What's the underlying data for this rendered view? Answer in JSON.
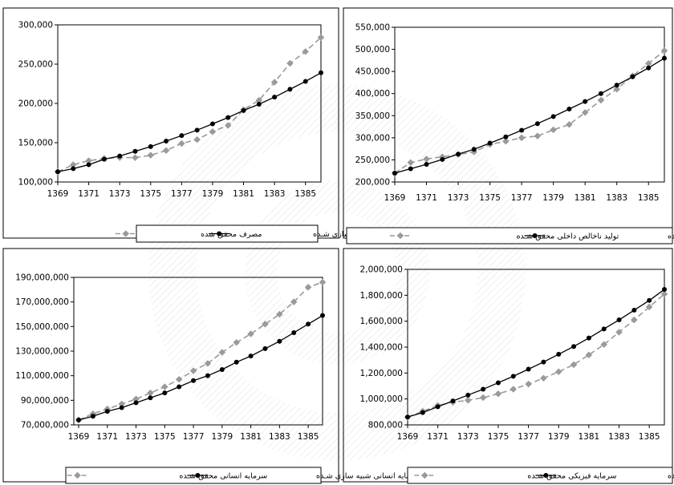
{
  "colors": {
    "actual": "#9a9a9a",
    "simulated": "#000000",
    "frame": "#000000",
    "watermark": "#d9d9d9"
  },
  "chart_data": [
    {
      "type": "line",
      "x": [
        1369,
        1370,
        1371,
        1372,
        1373,
        1374,
        1375,
        1376,
        1377,
        1378,
        1379,
        1380,
        1381,
        1382,
        1383,
        1384,
        1385,
        1386
      ],
      "xticks": [
        "1369",
        "1371",
        "1373",
        "1375",
        "1377",
        "1379",
        "1381",
        "1383",
        "1385"
      ],
      "ylim": [
        100000,
        300000
      ],
      "yticks": [
        "100,000",
        "150,000",
        "200,000",
        "250,000",
        "300,000"
      ],
      "yticks_values": [
        100000,
        150000,
        200000,
        250000,
        300000
      ],
      "series": [
        {
          "name": "مصرف محقق شده",
          "style": "dashed-gray-diamond",
          "values": [
            113000,
            122000,
            127000,
            130000,
            131000,
            131000,
            134000,
            140000,
            149000,
            154000,
            164000,
            172000,
            192000,
            204000,
            227000,
            251000,
            266000,
            284000
          ]
        },
        {
          "name": "مصرف شبیه سازی شـده",
          "style": "solid-black-circle",
          "values": [
            113000,
            117000,
            122000,
            129000,
            133000,
            139000,
            145000,
            152000,
            159000,
            166000,
            174000,
            182000,
            191000,
            199000,
            208000,
            218000,
            228000,
            239000
          ]
        }
      ]
    },
    {
      "type": "line",
      "x": [
        1369,
        1370,
        1371,
        1372,
        1373,
        1374,
        1375,
        1376,
        1377,
        1378,
        1379,
        1380,
        1381,
        1382,
        1383,
        1384,
        1385,
        1386
      ],
      "xticks": [
        "1369",
        "1371",
        "1373",
        "1375",
        "1377",
        "1379",
        "1381",
        "1383",
        "1385"
      ],
      "ylim": [
        200000,
        550000
      ],
      "yticks": [
        "200,000",
        "250,000",
        "300,000",
        "350,000",
        "400,000",
        "450,000",
        "500,000",
        "550,000"
      ],
      "yticks_values": [
        200000,
        250000,
        300000,
        350000,
        400000,
        450000,
        500000,
        550000
      ],
      "series": [
        {
          "name": "تولید ناخالص داخلی محقق شـده",
          "style": "dashed-gray-diamond",
          "values": [
            220000,
            244000,
            252000,
            257000,
            262000,
            268000,
            285000,
            292000,
            300000,
            304000,
            318000,
            330000,
            357000,
            385000,
            410000,
            440000,
            468000,
            497000
          ]
        },
        {
          "name": "تولید ناخالص داخلی شبیه سازی شـده",
          "style": "solid-black-circle",
          "values": [
            220000,
            230000,
            240000,
            251000,
            263000,
            274000,
            288000,
            302000,
            317000,
            332000,
            348000,
            365000,
            382000,
            400000,
            419000,
            438000,
            458000,
            480000
          ]
        }
      ]
    },
    {
      "type": "line",
      "x": [
        1369,
        1370,
        1371,
        1372,
        1373,
        1374,
        1375,
        1376,
        1377,
        1378,
        1379,
        1380,
        1381,
        1382,
        1383,
        1384,
        1385,
        1386
      ],
      "xticks": [
        "1369",
        "1371",
        "1373",
        "1375",
        "1377",
        "1379",
        "1381",
        "1383",
        "1385"
      ],
      "ylim": [
        70000000,
        190000000
      ],
      "yticks": [
        "70,000,000",
        "90,000,000",
        "110,000,000",
        "130,000,000",
        "150,000,000",
        "170,000,000",
        "190,000,000"
      ],
      "yticks_values": [
        70000000,
        90000000,
        110000000,
        130000000,
        150000000,
        170000000,
        190000000
      ],
      "series": [
        {
          "name": "سرمایه انسانی محقق شـده",
          "style": "dashed-gray-diamond",
          "values": [
            74000000,
            79000000,
            83000000,
            87000000,
            91000000,
            96000000,
            101000000,
            107000000,
            114000000,
            120000000,
            129000000,
            137000000,
            144000000,
            152000000,
            160000000,
            170000000,
            182000000,
            186000000
          ]
        },
        {
          "name": "سرمایه انسانی شبیه سازی شـده",
          "style": "solid-black-circle",
          "values": [
            74000000,
            77000000,
            81000000,
            84000000,
            88000000,
            92000000,
            96000000,
            101000000,
            106000000,
            110000000,
            115000000,
            121000000,
            126000000,
            132000000,
            138000000,
            145000000,
            152000000,
            159000000
          ]
        }
      ]
    },
    {
      "type": "line",
      "x": [
        1369,
        1370,
        1371,
        1372,
        1373,
        1374,
        1375,
        1376,
        1377,
        1378,
        1379,
        1380,
        1381,
        1382,
        1383,
        1384,
        1385,
        1386
      ],
      "xticks": [
        "1369",
        "1371",
        "1373",
        "1375",
        "1377",
        "1379",
        "1381",
        "1383",
        "1385"
      ],
      "ylim": [
        800000,
        2000000
      ],
      "yticks": [
        "800,000",
        "1,000,000",
        "1,200,000",
        "1,400,000",
        "1,600,000",
        "1,800,000",
        "2,000,000"
      ],
      "yticks_values": [
        800000,
        1000000,
        1200000,
        1400000,
        1600000,
        1800000,
        2000000
      ],
      "series": [
        {
          "name": "سرمایه فیزیکی محقق شـده",
          "style": "dashed-gray-diamond",
          "values": [
            860000,
            905000,
            950000,
            975000,
            990000,
            1010000,
            1040000,
            1075000,
            1115000,
            1160000,
            1210000,
            1265000,
            1340000,
            1420000,
            1515000,
            1610000,
            1710000,
            1810000
          ]
        },
        {
          "name": "سرمایه فیزیکی شبیه سـازی شـده",
          "style": "solid-black-circle",
          "values": [
            860000,
            895000,
            940000,
            985000,
            1030000,
            1075000,
            1125000,
            1175000,
            1230000,
            1285000,
            1345000,
            1405000,
            1470000,
            1540000,
            1610000,
            1685000,
            1760000,
            1845000
          ]
        }
      ]
    }
  ]
}
